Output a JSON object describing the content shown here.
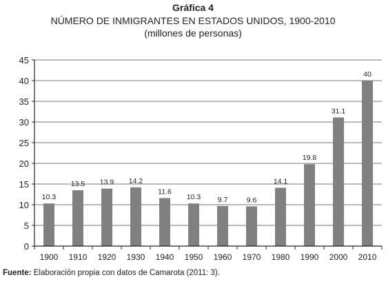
{
  "figure_label": "Gráfica 4",
  "source_label": "Fuente:",
  "source_text": " Elaboración propia con datos de Camarota (2011: 3).",
  "colors": {
    "bar": "#808080",
    "grid": "#444444",
    "axis": "#222222"
  },
  "chart_data": {
    "type": "bar",
    "title": "NÚMERO DE INMIGRANTES EN ESTADOS UNIDOS, 1900-2010",
    "subtitle": "(millones de personas)",
    "xlabel": "",
    "ylabel": "",
    "categories": [
      "1900",
      "1910",
      "1920",
      "1930",
      "1940",
      "1950",
      "1960",
      "1970",
      "1980",
      "1990",
      "2000",
      "2010"
    ],
    "values": [
      10.3,
      13.5,
      13.9,
      14.2,
      11.6,
      10.3,
      9.7,
      9.6,
      14.1,
      19.8,
      31.1,
      40
    ],
    "data_labels": [
      "10.3",
      "13.5",
      "13.9",
      "14.2",
      "11.6",
      "10.3",
      "9.7",
      "9.6",
      "14.1",
      "19.8",
      "31.1",
      "40"
    ],
    "ylim": [
      0,
      45
    ],
    "yticks": [
      "0",
      "5",
      "10",
      "15",
      "20",
      "25",
      "30",
      "35",
      "40",
      "45"
    ],
    "grid": true,
    "legend": "none"
  }
}
